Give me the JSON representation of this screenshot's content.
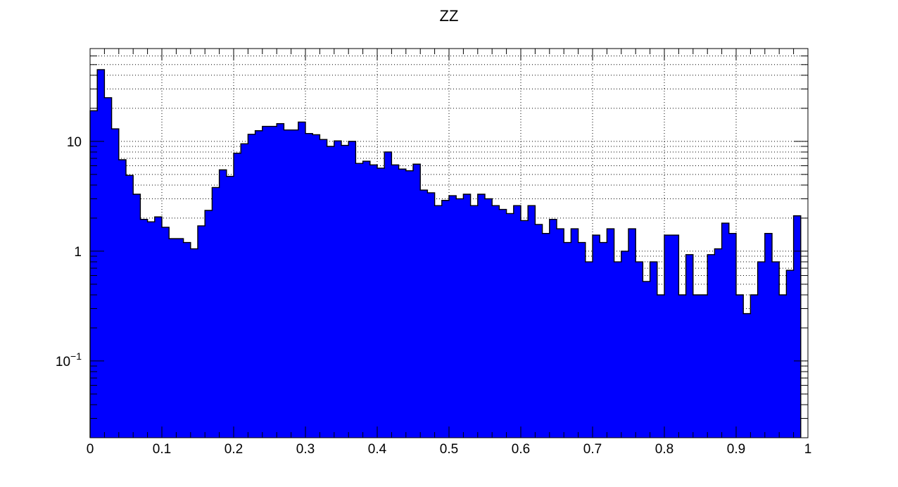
{
  "chart_data": {
    "type": "bar",
    "title": "ZZ",
    "xlabel": "",
    "ylabel": "",
    "xlim": [
      0,
      1
    ],
    "ylim": [
      0.02,
      70
    ],
    "yscale": "log",
    "grid": true,
    "legend": "none",
    "bar_color": "#0000ff",
    "edge_color": "#000000",
    "x_ticks": [
      "0",
      "0.1",
      "0.2",
      "0.3",
      "0.4",
      "0.5",
      "0.6",
      "0.7",
      "0.8",
      "0.9",
      "1"
    ],
    "y_ticks": [
      {
        "value": 0.1,
        "base": "10",
        "exp": "−1"
      },
      {
        "value": 1,
        "base": "1",
        "exp": ""
      },
      {
        "value": 10,
        "base": "10",
        "exp": ""
      }
    ],
    "bin_width": 0.01,
    "values": [
      19.0,
      45.0,
      25.0,
      13.0,
      6.8,
      4.9,
      3.3,
      1.95,
      1.85,
      2.05,
      1.65,
      1.3,
      1.3,
      1.2,
      1.05,
      1.7,
      2.35,
      3.8,
      5.5,
      4.8,
      7.8,
      9.5,
      11.6,
      12.5,
      13.7,
      13.7,
      14.5,
      12.7,
      12.7,
      15.0,
      11.8,
      11.5,
      10.4,
      9.0,
      10.1,
      9.2,
      10.0,
      6.3,
      6.6,
      6.1,
      5.7,
      8.0,
      6.1,
      5.6,
      5.4,
      6.2,
      3.6,
      3.4,
      2.6,
      2.9,
      3.2,
      3.0,
      3.3,
      2.6,
      3.3,
      3.0,
      2.6,
      2.4,
      2.2,
      2.6,
      1.9,
      2.6,
      1.75,
      1.45,
      1.95,
      1.6,
      1.2,
      1.6,
      1.2,
      0.8,
      1.4,
      1.2,
      1.6,
      0.8,
      1.0,
      1.6,
      0.8,
      0.53,
      0.8,
      0.4,
      1.4,
      1.4,
      0.4,
      0.93,
      0.4,
      0.4,
      0.93,
      1.05,
      1.8,
      1.45,
      0.4,
      0.27,
      0.4,
      0.8,
      1.45,
      0.8,
      0.4,
      0.67,
      2.1
    ]
  }
}
